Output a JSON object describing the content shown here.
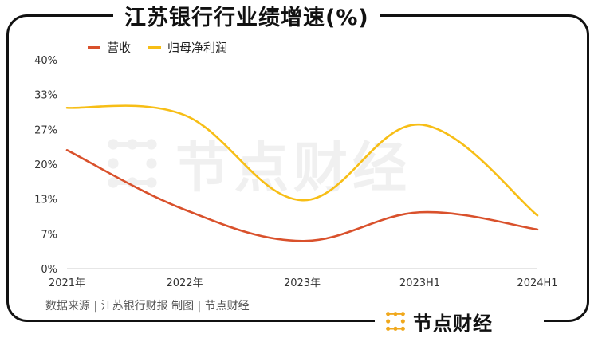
{
  "title": "江苏银行行业绩增速(%)",
  "source": "数据来源 | 江苏银行财报  制图 | 节点财经",
  "brand": "节点财经",
  "watermark": "节点财经",
  "colors": {
    "revenue": "#D9512C",
    "profit": "#F7BE16",
    "brand_icon": "#F0A81C"
  },
  "chart_data": {
    "type": "line",
    "categories": [
      "2021年",
      "2022年",
      "2023年",
      "2023H1",
      "2024H1"
    ],
    "y_ticks": [
      "0%",
      "7%",
      "13%",
      "20%",
      "27%",
      "33%",
      "40%"
    ],
    "ylim": [
      0,
      40
    ],
    "grid": false,
    "legend_position": "top-left",
    "series": [
      {
        "name": "营收",
        "values": [
          22.7,
          11.3,
          5.3,
          10.8,
          7.5
        ]
      },
      {
        "name": "归母净利润",
        "values": [
          30.8,
          29.4,
          13.1,
          27.6,
          10.2
        ]
      }
    ]
  }
}
